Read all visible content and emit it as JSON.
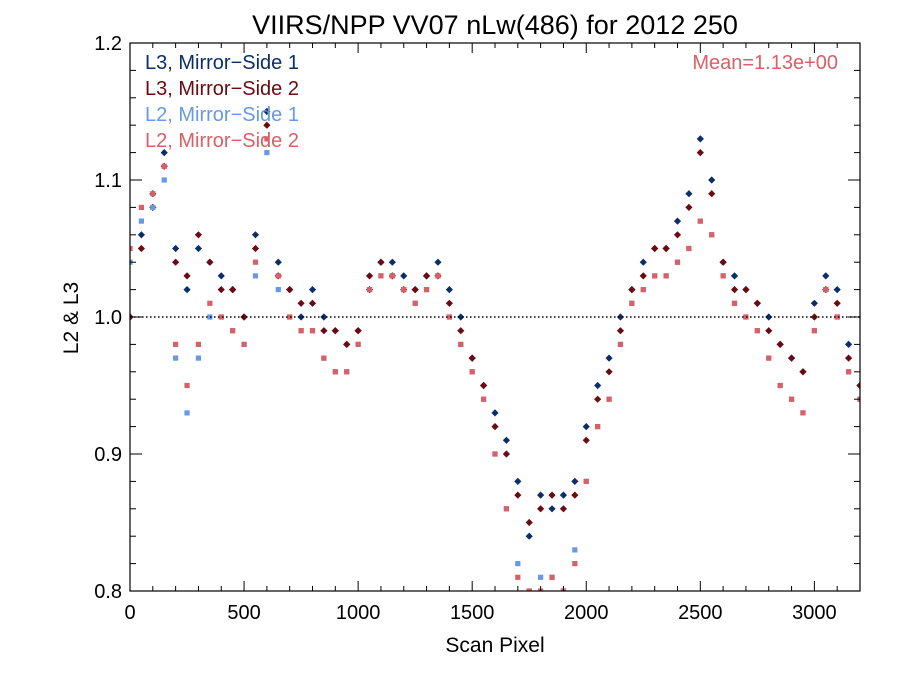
{
  "chart_data": {
    "type": "scatter",
    "title": "VIIRS/NPP VV07 nLw(486) for 2012 250",
    "xlabel": "Scan Pixel",
    "ylabel": "L2 & L3",
    "xlim": [
      0,
      3200
    ],
    "ylim": [
      0.8,
      1.2
    ],
    "x_ticks": [
      0,
      500,
      1000,
      1500,
      2000,
      2500,
      3000
    ],
    "x_tick_labels": [
      "0",
      "500",
      "1000",
      "1500",
      "2000",
      "2500",
      "3000"
    ],
    "y_ticks": [
      0.8,
      0.9,
      1.0,
      1.1,
      1.2
    ],
    "y_tick_labels": [
      "0.8",
      "0.9",
      "1.0",
      "1.1",
      "1.2"
    ],
    "reference_line": 1.0,
    "annotation": "Mean=1.13e+00",
    "legend_position": "top-left",
    "series": [
      {
        "name": "L3, Mirror−Side 1",
        "color": "#0b2e6b",
        "marker": "diamond",
        "x": [
          0,
          50,
          100,
          150,
          200,
          250,
          300,
          350,
          400,
          450,
          500,
          550,
          600,
          650,
          700,
          750,
          800,
          850,
          900,
          950,
          1000,
          1050,
          1100,
          1150,
          1200,
          1250,
          1300,
          1350,
          1400,
          1450,
          1500,
          1550,
          1600,
          1650,
          1700,
          1750,
          1800,
          1850,
          1900,
          1950,
          2000,
          2050,
          2100,
          2150,
          2200,
          2250,
          2300,
          2350,
          2400,
          2450,
          2500,
          2550,
          2600,
          2650,
          2700,
          2750,
          2800,
          2850,
          2900,
          2950,
          3000,
          3050,
          3100,
          3150,
          3200
        ],
        "y": [
          1.0,
          1.06,
          1.09,
          1.12,
          1.05,
          1.02,
          1.05,
          1.04,
          1.03,
          1.02,
          1.0,
          1.06,
          1.15,
          1.04,
          1.02,
          1.0,
          1.02,
          1.0,
          0.99,
          0.98,
          0.99,
          1.02,
          1.04,
          1.04,
          1.03,
          1.02,
          1.03,
          1.04,
          1.02,
          1.0,
          0.97,
          0.95,
          0.93,
          0.91,
          0.88,
          0.84,
          0.87,
          0.86,
          0.87,
          0.88,
          0.92,
          0.95,
          0.97,
          1.0,
          1.02,
          1.04,
          1.05,
          1.05,
          1.07,
          1.09,
          1.13,
          1.1,
          1.04,
          1.03,
          1.02,
          1.01,
          1.0,
          0.98,
          0.97,
          0.96,
          1.01,
          1.03,
          1.02,
          0.98,
          0.95
        ]
      },
      {
        "name": "L3, Mirror−Side 2",
        "color": "#6b0a10",
        "marker": "diamond",
        "x": [
          0,
          50,
          100,
          150,
          200,
          250,
          300,
          350,
          400,
          450,
          500,
          550,
          600,
          650,
          700,
          750,
          800,
          850,
          900,
          950,
          1000,
          1050,
          1100,
          1150,
          1200,
          1250,
          1300,
          1350,
          1400,
          1450,
          1500,
          1550,
          1600,
          1650,
          1700,
          1750,
          1800,
          1850,
          1900,
          1950,
          2000,
          2050,
          2100,
          2150,
          2200,
          2250,
          2300,
          2350,
          2400,
          2450,
          2500,
          2550,
          2600,
          2650,
          2700,
          2750,
          2800,
          2850,
          2900,
          2950,
          3000,
          3050,
          3100,
          3150,
          3200
        ],
        "y": [
          1.0,
          1.05,
          1.08,
          1.11,
          1.04,
          1.03,
          1.06,
          1.04,
          1.02,
          1.02,
          1.0,
          1.05,
          1.14,
          1.03,
          1.02,
          1.01,
          1.01,
          0.99,
          0.99,
          0.98,
          0.99,
          1.03,
          1.04,
          1.03,
          1.02,
          1.02,
          1.03,
          1.03,
          1.01,
          0.99,
          0.97,
          0.95,
          0.92,
          0.9,
          0.87,
          0.85,
          0.86,
          0.87,
          0.86,
          0.87,
          0.91,
          0.94,
          0.96,
          0.99,
          1.02,
          1.03,
          1.05,
          1.05,
          1.06,
          1.08,
          1.12,
          1.09,
          1.04,
          1.02,
          1.02,
          1.01,
          0.99,
          0.98,
          0.97,
          0.96,
          1.0,
          1.02,
          1.01,
          0.97,
          0.95
        ]
      },
      {
        "name": "L2, Mirror−Side 1",
        "color": "#6699e6",
        "marker": "square",
        "x": [
          0,
          50,
          100,
          150,
          200,
          250,
          300,
          350,
          400,
          450,
          500,
          550,
          600,
          650,
          700,
          750,
          800,
          850,
          900,
          950,
          1000,
          1050,
          1100,
          1150,
          1200,
          1250,
          1300,
          1350,
          1400,
          1450,
          1500,
          1550,
          1600,
          1650,
          1700,
          1750,
          1800,
          1850,
          1900,
          1950,
          2000,
          2050,
          2100,
          2150,
          2200,
          2250,
          2300,
          2350,
          2400,
          2450,
          2500,
          2550,
          2600,
          2650,
          2700,
          2750,
          2800,
          2850,
          2900,
          2950,
          3000,
          3050,
          3100,
          3150,
          3200
        ],
        "y": [
          1.04,
          1.07,
          1.08,
          1.1,
          0.97,
          0.93,
          0.97,
          1.0,
          1.0,
          0.99,
          0.98,
          1.03,
          1.12,
          1.02,
          1.0,
          0.99,
          0.99,
          0.97,
          0.96,
          0.96,
          0.98,
          1.02,
          1.03,
          1.03,
          1.02,
          1.01,
          1.02,
          1.03,
          1.0,
          0.98,
          0.96,
          0.94,
          0.9,
          0.86,
          0.82,
          0.8,
          0.81,
          0.81,
          0.8,
          0.83,
          0.88,
          0.92,
          0.94,
          0.98,
          1.01,
          1.02,
          1.03,
          1.03,
          1.04,
          1.05,
          1.07,
          1.06,
          1.03,
          1.01,
          1.0,
          0.99,
          0.97,
          0.95,
          0.94,
          0.93,
          0.99,
          1.02,
          1.0,
          0.96,
          0.94
        ]
      },
      {
        "name": "L2, Mirror−Side 2",
        "color": "#d96066",
        "marker": "square",
        "x": [
          0,
          50,
          100,
          150,
          200,
          250,
          300,
          350,
          400,
          450,
          500,
          550,
          600,
          650,
          700,
          750,
          800,
          850,
          900,
          950,
          1000,
          1050,
          1100,
          1150,
          1200,
          1250,
          1300,
          1350,
          1400,
          1450,
          1500,
          1550,
          1600,
          1650,
          1700,
          1750,
          1800,
          1850,
          1900,
          1950,
          2000,
          2050,
          2100,
          2150,
          2200,
          2250,
          2300,
          2350,
          2400,
          2450,
          2500,
          2550,
          2600,
          2650,
          2700,
          2750,
          2800,
          2850,
          2900,
          2950,
          3000,
          3050,
          3100,
          3150,
          3200
        ],
        "y": [
          1.05,
          1.08,
          1.09,
          1.11,
          0.98,
          0.95,
          0.98,
          1.01,
          1.0,
          0.99,
          0.98,
          1.04,
          1.13,
          1.03,
          1.0,
          0.99,
          0.99,
          0.97,
          0.96,
          0.96,
          0.98,
          1.02,
          1.03,
          1.03,
          1.02,
          1.01,
          1.02,
          1.03,
          1.0,
          0.98,
          0.96,
          0.94,
          0.9,
          0.86,
          0.81,
          0.8,
          0.8,
          0.81,
          0.8,
          0.82,
          0.88,
          0.92,
          0.94,
          0.98,
          1.01,
          1.02,
          1.03,
          1.03,
          1.04,
          1.05,
          1.07,
          1.06,
          1.03,
          1.01,
          1.0,
          0.99,
          0.97,
          0.95,
          0.94,
          0.93,
          0.99,
          1.02,
          1.0,
          0.96,
          0.94
        ]
      }
    ]
  }
}
